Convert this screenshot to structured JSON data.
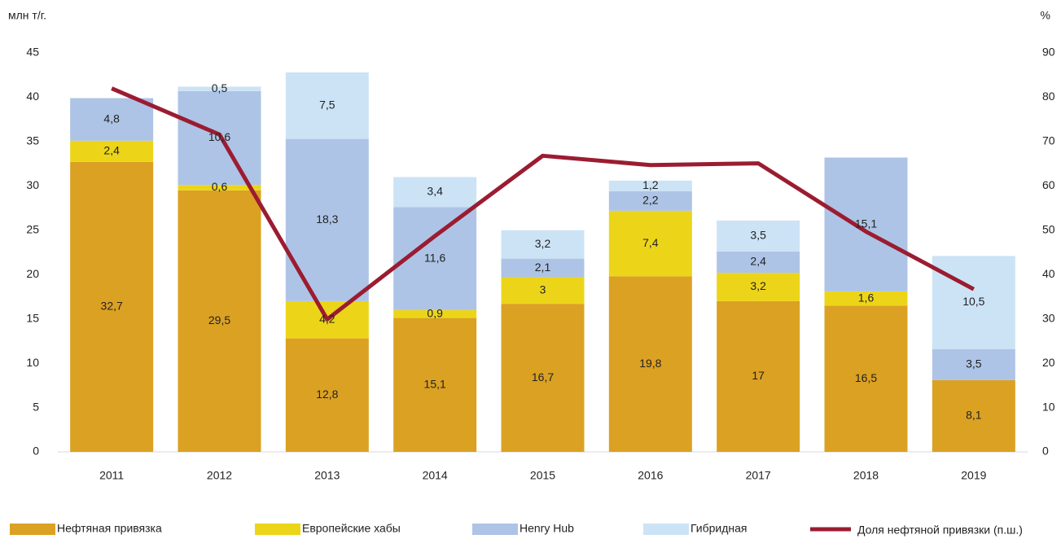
{
  "chart_data": {
    "type": "bar",
    "stacked": true,
    "y_label": "млн т/г.",
    "y2_label": "%",
    "categories": [
      "2011",
      "2012",
      "2013",
      "2014",
      "2015",
      "2016",
      "2017",
      "2018",
      "2019"
    ],
    "series": [
      {
        "name": "Нефтяная привязка",
        "color": "#dba122",
        "values": [
          32.7,
          29.5,
          12.8,
          15.1,
          16.7,
          19.8,
          17,
          16.5,
          8.1
        ],
        "value_labels": [
          "32,7",
          "29,5",
          "12,8",
          "15,1",
          "16,7",
          "19,8",
          "17",
          "16,5",
          "8,1"
        ]
      },
      {
        "name": "Европейские хабы",
        "color": "#ecd519",
        "values": [
          2.4,
          0.6,
          4.2,
          0.9,
          3,
          7.4,
          3.2,
          1.6,
          null
        ],
        "value_labels": [
          "2,4",
          "0,6",
          "4,2",
          "0,9",
          "3",
          "7,4",
          "3,2",
          "1,6",
          null
        ]
      },
      {
        "name": "Henry Hub",
        "color": "#adc4e6",
        "values": [
          4.8,
          10.6,
          18.3,
          11.6,
          2.1,
          2.2,
          2.4,
          15.1,
          3.5
        ],
        "value_labels": [
          "4,8",
          "10,6",
          "18,3",
          "11,6",
          "2,1",
          "2,2",
          "2,4",
          "15,1",
          "3,5"
        ]
      },
      {
        "name": "Гибридная",
        "color": "#cce3f6",
        "values": [
          null,
          0.5,
          7.5,
          3.4,
          3.2,
          1.2,
          3.5,
          null,
          10.5
        ],
        "value_labels": [
          null,
          "0,5",
          "7,5",
          "3,4",
          "3,2",
          "1,2",
          "3,5",
          null,
          "10,5"
        ]
      },
      {
        "name": "Доля нефтяной привязки (п.ш.)",
        "type": "line",
        "axis": "y2",
        "color": "#9b1c31",
        "values": [
          82,
          71.6,
          29.9,
          48.7,
          66.8,
          64.7,
          65.1,
          49.7,
          36.7
        ]
      }
    ],
    "ylim": [
      0,
      45
    ],
    "yticks": [
      0,
      5,
      10,
      15,
      20,
      25,
      30,
      35,
      40,
      45
    ],
    "y2lim": [
      0,
      90
    ],
    "y2ticks": [
      0,
      10,
      20,
      30,
      40,
      50,
      60,
      70,
      80,
      90
    ]
  }
}
